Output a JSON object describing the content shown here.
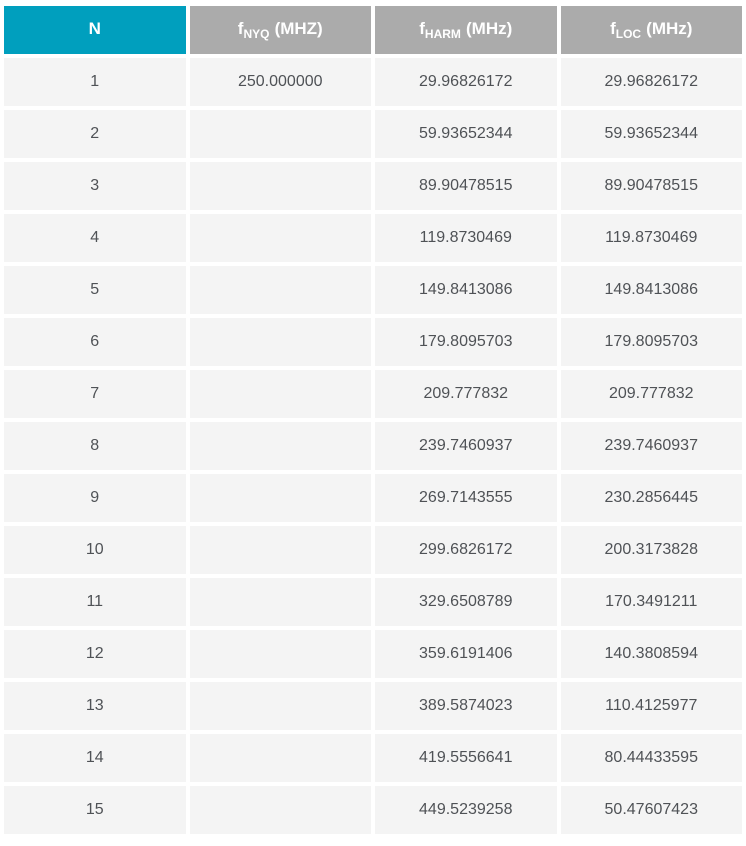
{
  "colors": {
    "header_accent": "#009fbe",
    "header_gray": "#ababab",
    "row_background": "#f4f4f4",
    "body_text": "#4f5256",
    "header_text": "#ffffff",
    "gutter": "#ffffff"
  },
  "table": {
    "columns": [
      {
        "key": "n",
        "base": "N",
        "sub": "",
        "unit": ""
      },
      {
        "key": "fnyq",
        "base": "f",
        "sub": "NYQ",
        "unit": "(MHZ)"
      },
      {
        "key": "fharm",
        "base": "f",
        "sub": "HARM",
        "unit": "(MHz)"
      },
      {
        "key": "floc",
        "base": "f",
        "sub": "LOC",
        "unit": "(MHz)"
      }
    ],
    "rows": [
      {
        "n": "1",
        "fnyq": "250.000000",
        "fharm": "29.96826172",
        "floc": "29.96826172"
      },
      {
        "n": "2",
        "fnyq": "",
        "fharm": "59.93652344",
        "floc": "59.93652344"
      },
      {
        "n": "3",
        "fnyq": "",
        "fharm": "89.90478515",
        "floc": "89.90478515"
      },
      {
        "n": "4",
        "fnyq": "",
        "fharm": "119.8730469",
        "floc": "119.8730469"
      },
      {
        "n": "5",
        "fnyq": "",
        "fharm": "149.8413086",
        "floc": "149.8413086"
      },
      {
        "n": "6",
        "fnyq": "",
        "fharm": "179.8095703",
        "floc": "179.8095703"
      },
      {
        "n": "7",
        "fnyq": "",
        "fharm": "209.777832",
        "floc": "209.777832"
      },
      {
        "n": "8",
        "fnyq": "",
        "fharm": "239.7460937",
        "floc": "239.7460937"
      },
      {
        "n": "9",
        "fnyq": "",
        "fharm": "269.7143555",
        "floc": "230.2856445"
      },
      {
        "n": "10",
        "fnyq": "",
        "fharm": "299.6826172",
        "floc": "200.3173828"
      },
      {
        "n": "11",
        "fnyq": "",
        "fharm": "329.6508789",
        "floc": "170.3491211"
      },
      {
        "n": "12",
        "fnyq": "",
        "fharm": "359.6191406",
        "floc": "140.3808594"
      },
      {
        "n": "13",
        "fnyq": "",
        "fharm": "389.5874023",
        "floc": "110.4125977"
      },
      {
        "n": "14",
        "fnyq": "",
        "fharm": "419.5556641",
        "floc": "80.44433595"
      },
      {
        "n": "15",
        "fnyq": "",
        "fharm": "449.5239258",
        "floc": "50.47607423"
      }
    ]
  },
  "chart_data": {
    "type": "table",
    "columns": [
      "N",
      "fNYQ (MHZ)",
      "fHARM (MHz)",
      "fLOC (MHz)"
    ],
    "rows": [
      [
        "1",
        "250.000000",
        "29.96826172",
        "29.96826172"
      ],
      [
        "2",
        "",
        "59.93652344",
        "59.93652344"
      ],
      [
        "3",
        "",
        "89.90478515",
        "89.90478515"
      ],
      [
        "4",
        "",
        "119.8730469",
        "119.8730469"
      ],
      [
        "5",
        "",
        "149.8413086",
        "149.8413086"
      ],
      [
        "6",
        "",
        "179.8095703",
        "179.8095703"
      ],
      [
        "7",
        "",
        "209.777832",
        "209.777832"
      ],
      [
        "8",
        "",
        "239.7460937",
        "239.7460937"
      ],
      [
        "9",
        "",
        "269.7143555",
        "230.2856445"
      ],
      [
        "10",
        "",
        "299.6826172",
        "200.3173828"
      ],
      [
        "11",
        "",
        "329.6508789",
        "170.3491211"
      ],
      [
        "12",
        "",
        "359.6191406",
        "140.3808594"
      ],
      [
        "13",
        "",
        "389.5874023",
        "110.4125977"
      ],
      [
        "14",
        "",
        "419.5556641",
        "80.44433595"
      ],
      [
        "15",
        "",
        "449.5239258",
        "50.47607423"
      ]
    ]
  }
}
